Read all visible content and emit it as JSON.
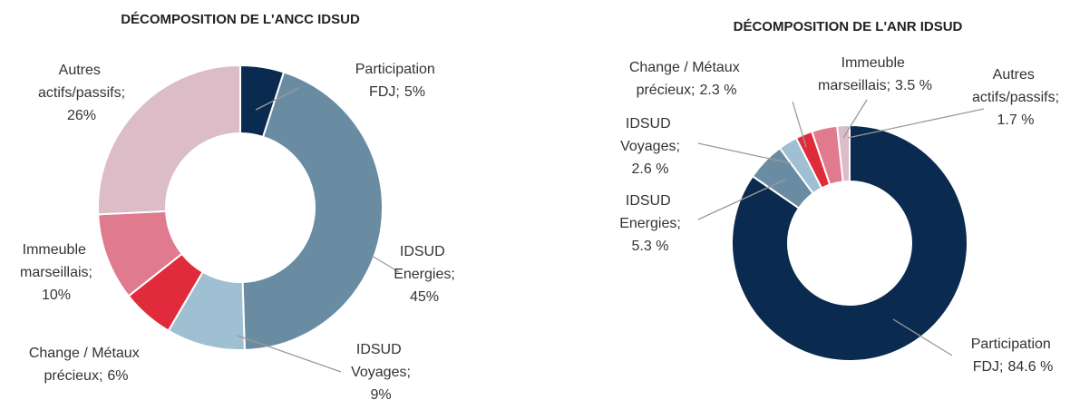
{
  "chart_data": [
    {
      "type": "donut",
      "title": "DÉCOMPOSITION DE L'ANCC IDSUD",
      "categories": [
        "Participation FDJ;",
        "IDSUD Energies;",
        "IDSUD Voyages;",
        "Change / Métaux précieux;",
        "Immeuble marseillais;",
        "Autres actifs/passifs;"
      ],
      "values": [
        5,
        45,
        9,
        6,
        10,
        26
      ],
      "value_labels": [
        "5%",
        "45%",
        "9%",
        "6%",
        "10%",
        "26%"
      ],
      "colors": [
        "#0b2a4f",
        "#6a8ca3",
        "#9fbfd2",
        "#e02b3c",
        "#e07a8e",
        "#dbbcc7"
      ]
    },
    {
      "type": "donut",
      "title": "DÉCOMPOSITION DE L'ANR IDSUD",
      "categories": [
        "Participation FDJ;",
        "IDSUD Energies;",
        "IDSUD Voyages;",
        "Change / Métaux précieux;",
        "Immeuble marseillais;",
        "Autres actifs/passifs;"
      ],
      "values": [
        84.6,
        5.3,
        2.6,
        2.3,
        3.5,
        1.7
      ],
      "value_labels": [
        "84.6 %",
        "5.3 %",
        "2.6 %",
        "2.3 %",
        "3.5 %",
        "1.7 %"
      ],
      "colors": [
        "#0b2a4f",
        "#6a8ca3",
        "#9fbfd2",
        "#e02b3c",
        "#e07a8e",
        "#dbbcc7"
      ]
    }
  ]
}
